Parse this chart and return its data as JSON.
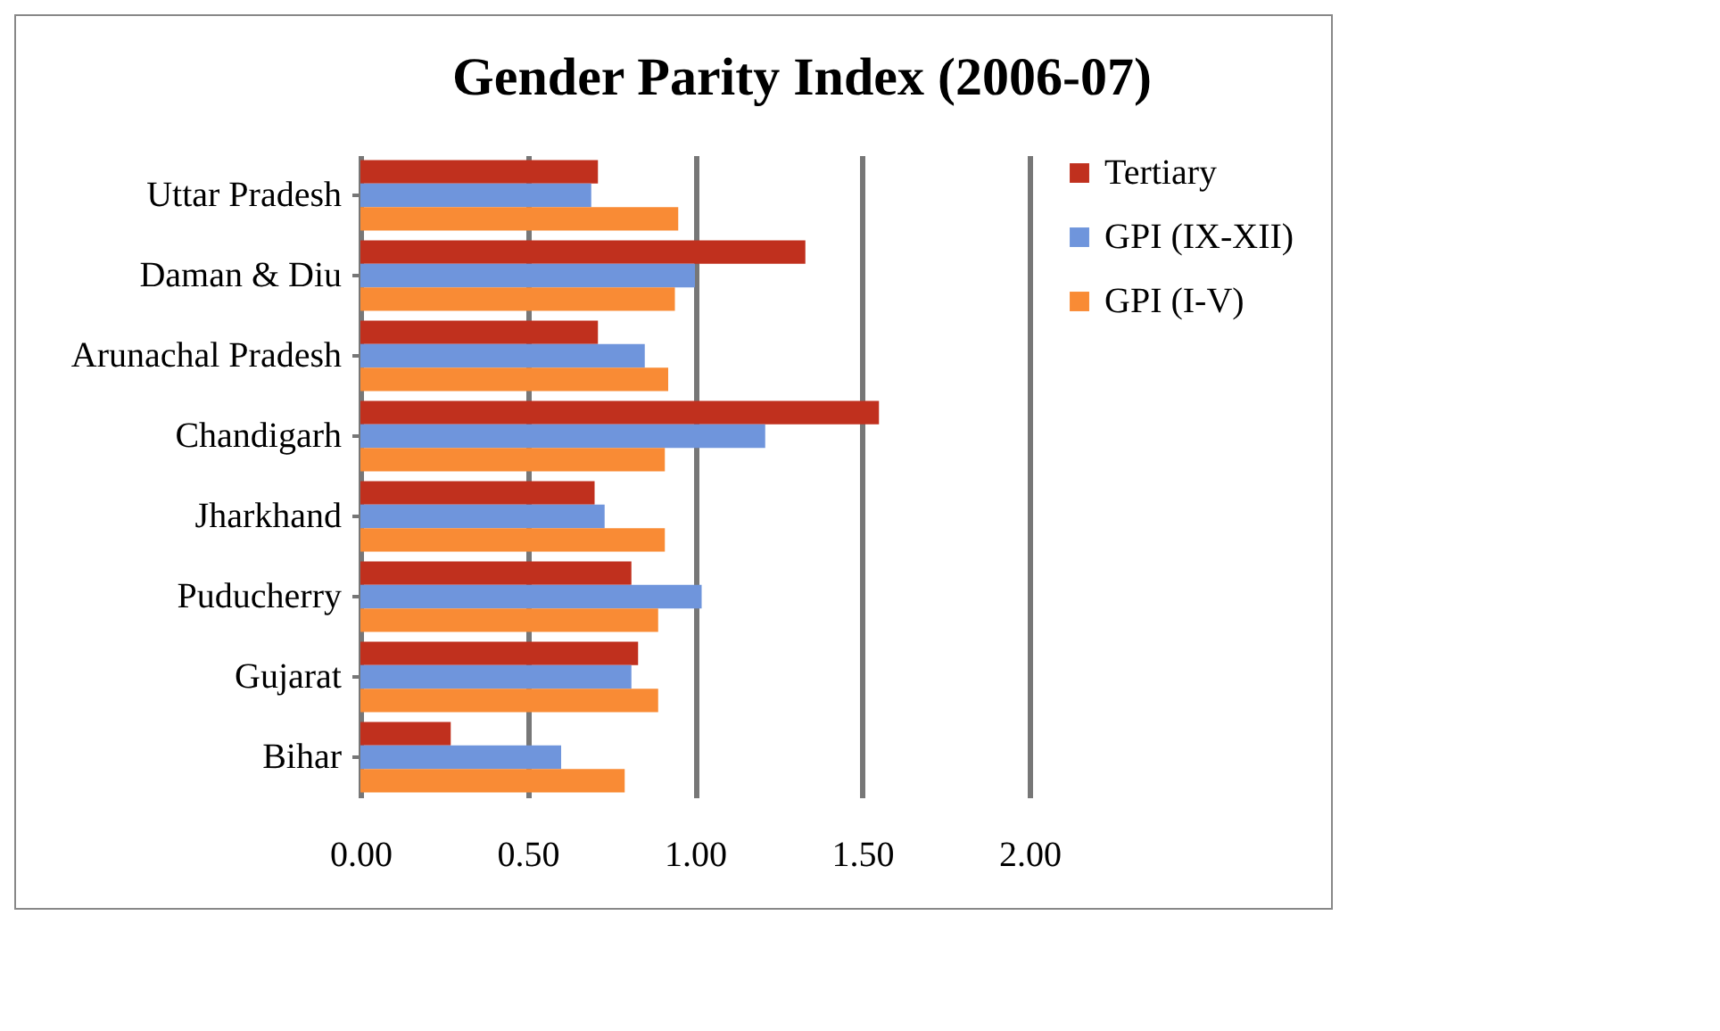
{
  "chart_data": {
    "type": "bar",
    "title": "Gender Parity Index (2006-07)",
    "orientation": "horizontal",
    "categories": [
      "Uttar Pradesh",
      "Daman & Diu",
      "Arunachal Pradesh",
      "Chandigarh",
      "Jharkhand",
      "Puducherry",
      "Gujarat",
      "Bihar"
    ],
    "series": [
      {
        "name": "Tertiary",
        "color": "#c0301e",
        "values": [
          0.71,
          1.33,
          0.71,
          1.55,
          0.7,
          0.81,
          0.83,
          0.27
        ]
      },
      {
        "name": "GPI (IX-XII)",
        "color": "#6f95dc",
        "values": [
          0.69,
          1.0,
          0.85,
          1.21,
          0.73,
          1.02,
          0.81,
          0.6
        ]
      },
      {
        "name": "GPI (I-V)",
        "color": "#f98b35",
        "values": [
          0.95,
          0.94,
          0.92,
          0.91,
          0.91,
          0.89,
          0.89,
          0.79
        ]
      }
    ],
    "xlim": [
      0,
      2
    ],
    "xticks": [
      {
        "value": 0,
        "label": "0.00"
      },
      {
        "value": 0.5,
        "label": "0.50"
      },
      {
        "value": 1,
        "label": "1.00"
      },
      {
        "value": 1.5,
        "label": "1.50"
      },
      {
        "value": 2,
        "label": "2.00"
      }
    ],
    "grid": "x",
    "legend": "right"
  }
}
